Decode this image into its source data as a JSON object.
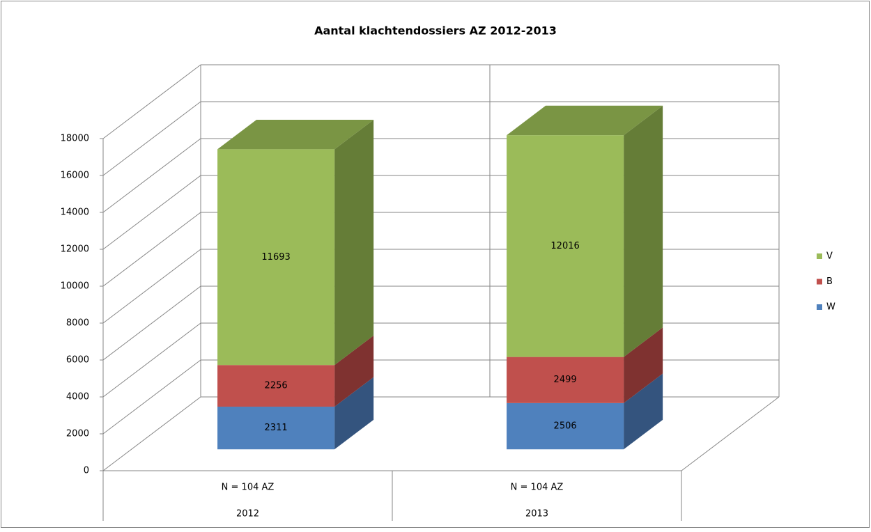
{
  "chart_data": {
    "type": "bar3d_stacked",
    "title": "Aantal klachtendossiers AZ 2012-2013",
    "categories": [
      "2012",
      "2013"
    ],
    "subcategories": [
      "N = 104 AZ",
      "N = 104 AZ"
    ],
    "series": [
      {
        "name": "W",
        "color": "#4f81bd",
        "side_color": "#34547e",
        "top_color": "#4470a8",
        "values": [
          2311,
          2506
        ]
      },
      {
        "name": "B",
        "color": "#c0504d",
        "side_color": "#7f3230",
        "top_color": "#a84543",
        "values": [
          2256,
          2499
        ]
      },
      {
        "name": "V",
        "color": "#9bbb59",
        "side_color": "#657d37",
        "top_color": "#7a9544",
        "values": [
          11693,
          12016
        ]
      }
    ],
    "ylim": [
      0,
      18000
    ],
    "yticks": [
      0,
      2000,
      4000,
      6000,
      8000,
      10000,
      12000,
      14000,
      16000,
      18000
    ],
    "grid": true,
    "legend": "right"
  }
}
